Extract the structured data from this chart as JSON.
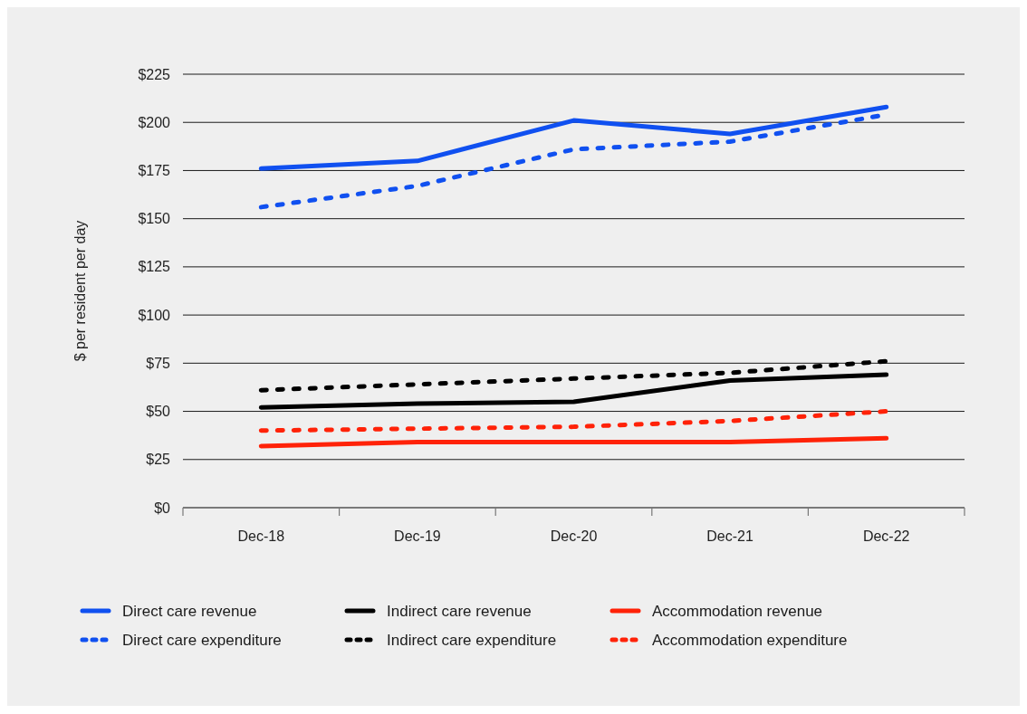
{
  "chart_data": {
    "type": "line",
    "ylabel": "$ per resident per day",
    "categories": [
      "Dec-18",
      "Dec-19",
      "Dec-20",
      "Dec-21",
      "Dec-22"
    ],
    "series": [
      {
        "name": "Direct care revenue",
        "color": "#1050f0",
        "line_style": "solid",
        "values": [
          176,
          180,
          201,
          194,
          208
        ]
      },
      {
        "name": "Indirect care revenue",
        "color": "#000000",
        "line_style": "solid",
        "values": [
          52,
          54,
          55,
          66,
          69
        ]
      },
      {
        "name": "Accommodation revenue",
        "color": "#ff2208",
        "line_style": "solid",
        "values": [
          32,
          34,
          34,
          34,
          36
        ]
      },
      {
        "name": "Direct care expenditure",
        "color": "#1050f0",
        "line_style": "dashed",
        "values": [
          156,
          167,
          186,
          190,
          204
        ]
      },
      {
        "name": "Indirect care expenditure",
        "color": "#000000",
        "line_style": "dashed",
        "values": [
          61,
          64,
          67,
          70,
          76
        ]
      },
      {
        "name": "Accommodation expenditure",
        "color": "#ff2208",
        "line_style": "dashed",
        "values": [
          40,
          41,
          42,
          45,
          50
        ]
      }
    ],
    "ylim": [
      0,
      225
    ],
    "yticks": [
      {
        "value": 0,
        "label": "$0"
      },
      {
        "value": 25,
        "label": "$25"
      },
      {
        "value": 50,
        "label": "$50"
      },
      {
        "value": 75,
        "label": "$75"
      },
      {
        "value": 100,
        "label": "$100"
      },
      {
        "value": 125,
        "label": "$125"
      },
      {
        "value": 150,
        "label": "$150"
      },
      {
        "value": 175,
        "label": "$175"
      },
      {
        "value": 200,
        "label": "$200"
      },
      {
        "value": 225,
        "label": "$225"
      }
    ],
    "grid": "y",
    "legend": "bottom"
  }
}
